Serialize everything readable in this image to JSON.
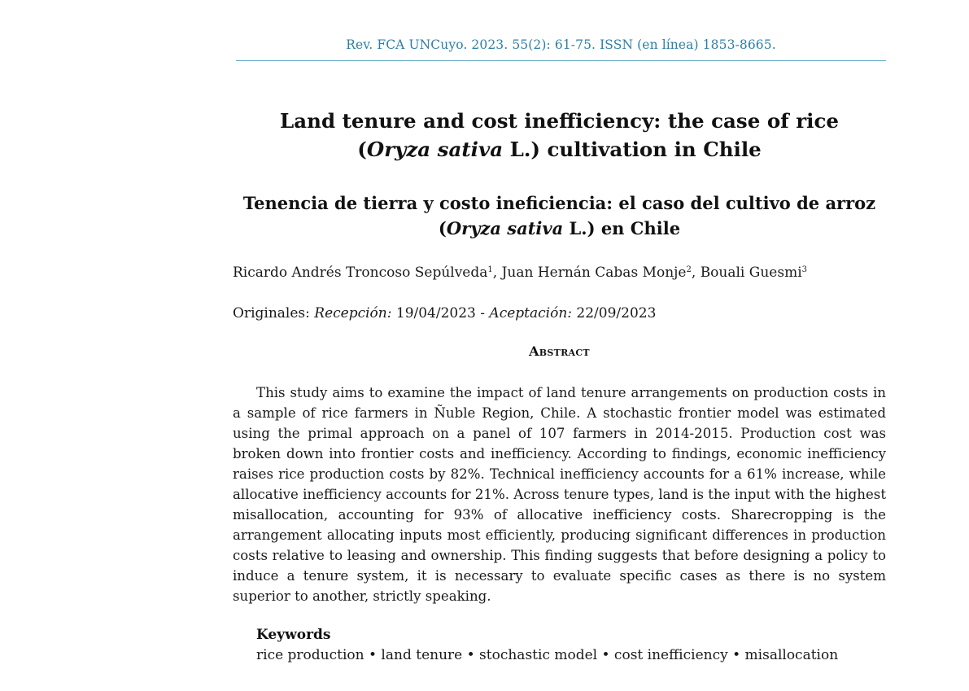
{
  "journal_header": "Rev. FCA UNCuyo. 2023. 55(2): 61-75. ISSN (en línea) 1853-8665.",
  "title_en": {
    "line1": "Land tenure and cost inefficiency: the case of rice",
    "open_paren": "(",
    "species": "Oryza sativa",
    "line2_rest": " L.) cultivation in Chile"
  },
  "title_es": {
    "line1": "Tenencia de tierra y costo ineficiencia: el caso del cultivo de arroz",
    "open_paren": "(",
    "species": "Oryza sativa",
    "line2_rest": " L.) en Chile"
  },
  "authors": [
    {
      "name": "Ricardo Andrés Troncoso Sepúlveda",
      "affiliation": "1",
      "separator": ", "
    },
    {
      "name": "Juan Hernán Cabas Monje",
      "affiliation": "2",
      "separator": ", "
    },
    {
      "name": "Bouali Guesmi",
      "affiliation": "3",
      "separator": ""
    }
  ],
  "dates": {
    "prefix": "Originales: ",
    "received_label": "Recepción:",
    "received_date": " 19/04/2023 ",
    "dash": "- ",
    "accepted_label": "Aceptación:",
    "accepted_date": " 22/09/2023"
  },
  "abstract": {
    "heading": "Abstract",
    "text": "This study aims to examine the impact of land tenure arrangements on production costs in a sample of rice farmers in Ñuble Region, Chile. A stochastic frontier model was estimated using the primal approach on a panel of 107 farmers in 2014-2015. Production cost was broken down into frontier costs and inefficiency. According to findings, economic inefficiency raises rice production costs by 82%. Technical inefficiency accounts for a 61% increase, while allocative inefficiency accounts for 21%. Across tenure types, land is the input with the highest misallocation, accounting for 93% of allocative inefficiency costs. Sharecropping is the arrangement allocating inputs most efficiently, producing significant differences in production costs relative to leasing and ownership. This finding suggests that before designing a policy to induce a tenure system, it is necessary to evaluate specific cases as there is no system superior to another, strictly speaking."
  },
  "keywords": {
    "heading": "Keywords",
    "list": "rice production • land tenure • stochastic model • cost inefficiency • misallocation"
  },
  "colors": {
    "header_text": "#2e7fa6",
    "header_rule": "#6aafc9",
    "body_text": "#1a1a1a"
  }
}
